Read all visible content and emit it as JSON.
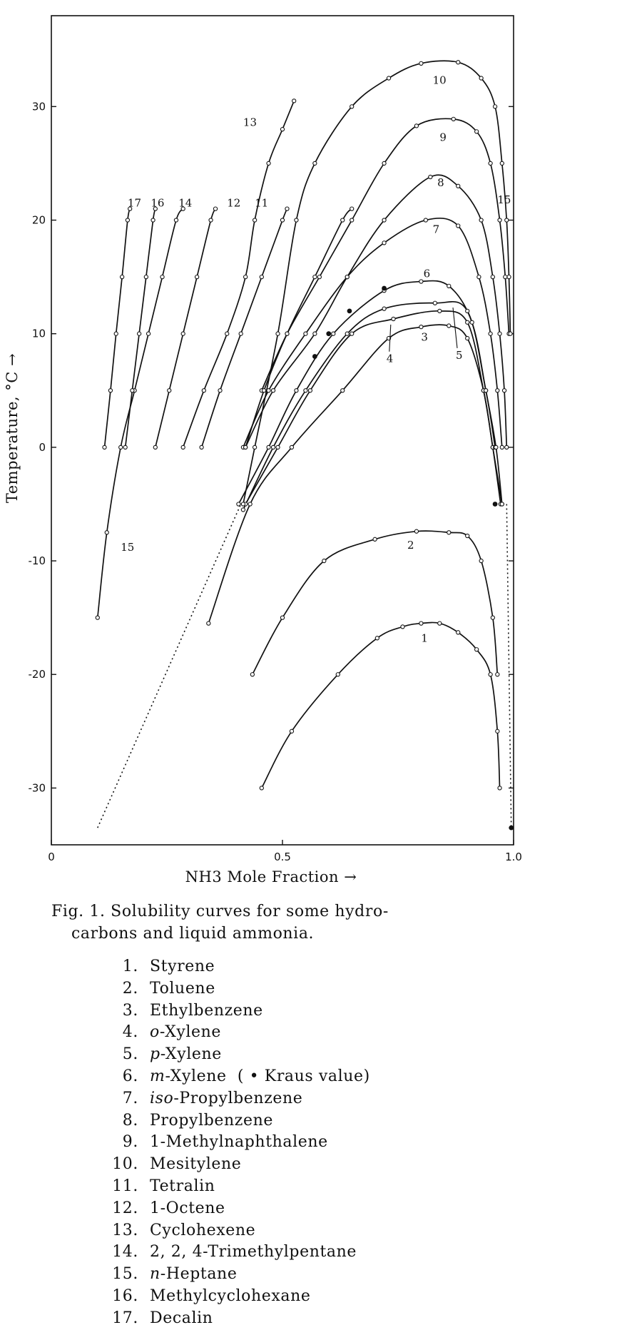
{
  "chart_data": {
    "type": "line",
    "title": "",
    "xlabel": "NH3 Mole Fraction →",
    "ylabel": "Temperature, °C →",
    "xlim": [
      0,
      1.0
    ],
    "ylim": [
      -35,
      38
    ],
    "x_ticks": [
      "0",
      "0.5",
      "1.0"
    ],
    "y_ticks": [
      "30",
      "20",
      "10",
      "0",
      "-10",
      "-20",
      "-30"
    ],
    "grid": false,
    "series": [
      {
        "id": "1",
        "name": "Styrene",
        "points": [
          [
            0.455,
            -30
          ],
          [
            0.52,
            -25
          ],
          [
            0.62,
            -20
          ],
          [
            0.705,
            -16.8
          ],
          [
            0.76,
            -15.8
          ],
          [
            0.8,
            -15.5
          ],
          [
            0.84,
            -15.5
          ],
          [
            0.88,
            -16.3
          ],
          [
            0.92,
            -17.8
          ],
          [
            0.95,
            -20
          ],
          [
            0.965,
            -25
          ],
          [
            0.97,
            -30
          ]
        ]
      },
      {
        "id": "2",
        "name": "Toluene",
        "points": [
          [
            0.435,
            -20
          ],
          [
            0.5,
            -15
          ],
          [
            0.59,
            -10
          ],
          [
            0.7,
            -8.1
          ],
          [
            0.79,
            -7.4
          ],
          [
            0.86,
            -7.5
          ],
          [
            0.9,
            -7.8
          ],
          [
            0.93,
            -10
          ],
          [
            0.955,
            -15
          ],
          [
            0.965,
            -20
          ]
        ]
      },
      {
        "id": "3",
        "name": "Ethylbenzene",
        "points": [
          [
            0.34,
            -15.5
          ],
          [
            0.43,
            -5
          ],
          [
            0.52,
            0
          ],
          [
            0.63,
            5
          ],
          [
            0.73,
            9.6
          ],
          [
            0.8,
            10.6
          ],
          [
            0.86,
            10.7
          ],
          [
            0.9,
            9.6
          ],
          [
            0.935,
            5
          ],
          [
            0.955,
            0
          ],
          [
            0.975,
            -5
          ]
        ]
      },
      {
        "id": "4",
        "name": "o-Xylene",
        "points": [
          [
            0.42,
            -5
          ],
          [
            0.49,
            0
          ],
          [
            0.56,
            5
          ],
          [
            0.65,
            10
          ],
          [
            0.74,
            11.3
          ],
          [
            0.84,
            12
          ],
          [
            0.9,
            11
          ],
          [
            0.935,
            5
          ],
          [
            0.955,
            0
          ],
          [
            0.972,
            -5
          ]
        ]
      },
      {
        "id": "5",
        "name": "p-Xylene",
        "points": [
          [
            0.415,
            -5.5
          ],
          [
            0.48,
            0
          ],
          [
            0.55,
            5
          ],
          [
            0.64,
            10
          ],
          [
            0.72,
            12.2
          ],
          [
            0.83,
            12.7
          ],
          [
            0.9,
            12
          ],
          [
            0.94,
            5
          ],
          [
            0.96,
            0
          ]
        ]
      },
      {
        "id": "6",
        "name": "m-Xylene",
        "points": [
          [
            0.405,
            -5
          ],
          [
            0.47,
            0
          ],
          [
            0.53,
            5
          ],
          [
            0.61,
            10
          ],
          [
            0.72,
            13.8
          ],
          [
            0.8,
            14.6
          ],
          [
            0.86,
            14.2
          ],
          [
            0.91,
            11
          ],
          [
            0.94,
            5
          ],
          [
            0.962,
            0
          ],
          [
            0.975,
            -5
          ]
        ]
      },
      {
        "id": "7",
        "name": "iso-Propylbenzene",
        "points": [
          [
            0.415,
            0
          ],
          [
            0.47,
            5
          ],
          [
            0.55,
            10
          ],
          [
            0.64,
            15
          ],
          [
            0.72,
            18
          ],
          [
            0.81,
            20
          ],
          [
            0.88,
            19.5
          ],
          [
            0.925,
            15
          ],
          [
            0.95,
            10
          ],
          [
            0.965,
            5
          ],
          [
            0.975,
            0
          ]
        ]
      },
      {
        "id": "8",
        "name": "Propylbenzene",
        "points": [
          [
            0.42,
            0
          ],
          [
            0.48,
            5
          ],
          [
            0.57,
            10
          ],
          [
            0.64,
            15
          ],
          [
            0.72,
            20
          ],
          [
            0.82,
            23.8
          ],
          [
            0.88,
            23
          ],
          [
            0.93,
            20
          ],
          [
            0.955,
            15
          ],
          [
            0.97,
            10
          ],
          [
            0.98,
            5
          ],
          [
            0.985,
            0
          ]
        ]
      },
      {
        "id": "9",
        "name": "1-Methylnaphthalene",
        "points": [
          [
            0.455,
            5
          ],
          [
            0.51,
            10
          ],
          [
            0.58,
            15
          ],
          [
            0.65,
            20
          ],
          [
            0.72,
            25
          ],
          [
            0.79,
            28.3
          ],
          [
            0.87,
            28.9
          ],
          [
            0.92,
            27.8
          ],
          [
            0.95,
            25
          ],
          [
            0.97,
            20
          ],
          [
            0.982,
            15
          ],
          [
            0.99,
            10
          ]
        ]
      },
      {
        "id": "10",
        "name": "Mesitylene",
        "points": [
          [
            0.415,
            -5
          ],
          [
            0.44,
            0
          ],
          [
            0.49,
            10
          ],
          [
            0.53,
            20
          ],
          [
            0.57,
            25
          ],
          [
            0.65,
            30
          ],
          [
            0.73,
            32.5
          ],
          [
            0.8,
            33.8
          ],
          [
            0.88,
            33.9
          ],
          [
            0.93,
            32.5
          ],
          [
            0.96,
            30
          ],
          [
            0.975,
            25
          ],
          [
            0.985,
            20
          ],
          [
            0.99,
            15
          ],
          [
            0.993,
            10
          ]
        ]
      },
      {
        "id": "11",
        "name": "Tetralin",
        "points": [
          [
            0.42,
            0
          ],
          [
            0.46,
            5
          ],
          [
            0.51,
            10
          ],
          [
            0.57,
            15
          ],
          [
            0.63,
            20
          ],
          [
            0.65,
            21
          ]
        ]
      },
      {
        "id": "12",
        "name": "1-Octene",
        "points": [
          [
            0.325,
            0
          ],
          [
            0.365,
            5
          ],
          [
            0.41,
            10
          ],
          [
            0.455,
            15
          ],
          [
            0.5,
            20
          ],
          [
            0.51,
            21
          ]
        ]
      },
      {
        "id": "13",
        "name": "Cyclohexene",
        "points": [
          [
            0.285,
            0
          ],
          [
            0.33,
            5
          ],
          [
            0.38,
            10
          ],
          [
            0.42,
            15
          ],
          [
            0.44,
            20
          ],
          [
            0.47,
            25
          ],
          [
            0.5,
            28
          ],
          [
            0.525,
            30.5
          ]
        ]
      },
      {
        "id": "14",
        "name": "2,2,4-Trimethylpentane",
        "points": [
          [
            0.225,
            0
          ],
          [
            0.255,
            5
          ],
          [
            0.285,
            10
          ],
          [
            0.315,
            15
          ],
          [
            0.345,
            20
          ],
          [
            0.355,
            21
          ]
        ]
      },
      {
        "id": "15",
        "name": "n-Heptane",
        "points": [
          [
            0.1,
            -15
          ],
          [
            0.12,
            -7.5
          ],
          [
            0.15,
            0
          ],
          [
            0.18,
            5
          ],
          [
            0.21,
            10
          ],
          [
            0.24,
            15
          ],
          [
            0.27,
            20
          ],
          [
            0.285,
            21
          ]
        ]
      },
      {
        "id": "16",
        "name": "Methylcyclohexane",
        "points": [
          [
            0.16,
            0
          ],
          [
            0.175,
            5
          ],
          [
            0.19,
            10
          ],
          [
            0.205,
            15
          ],
          [
            0.22,
            20
          ],
          [
            0.225,
            21
          ]
        ]
      },
      {
        "id": "17",
        "name": "Decalin",
        "points": [
          [
            0.115,
            0
          ],
          [
            0.128,
            5
          ],
          [
            0.14,
            10
          ],
          [
            0.153,
            15
          ],
          [
            0.165,
            20
          ],
          [
            0.17,
            21
          ]
        ]
      }
    ],
    "dotted_extension": [
      [
        0.1,
        -33.5
      ],
      [
        0.41,
        -5
      ]
    ],
    "kraus_values": [
      [
        0.57,
        8
      ],
      [
        0.6,
        10
      ],
      [
        0.645,
        12
      ],
      [
        0.72,
        14
      ],
      [
        0.96,
        -5
      ],
      [
        0.995,
        -33.5
      ]
    ],
    "annotations": [
      "1",
      "2",
      "3",
      "4",
      "5",
      "6",
      "7",
      "8",
      "9",
      "10",
      "11",
      "12",
      "13",
      "14",
      "15",
      "15",
      "16",
      "17"
    ]
  },
  "caption": {
    "line1": "Fig. 1.  Solubility curves for some hydro-",
    "line2": "carbons and liquid ammonia."
  },
  "legend": [
    {
      "num": "1.",
      "prefix": "",
      "name": "Styrene"
    },
    {
      "num": "2.",
      "prefix": "",
      "name": "Toluene"
    },
    {
      "num": "3.",
      "prefix": "",
      "name": "Ethylbenzene"
    },
    {
      "num": "4.",
      "prefix": "o",
      "name": "-Xylene"
    },
    {
      "num": "5.",
      "prefix": "p",
      "name": "-Xylene"
    },
    {
      "num": "6.",
      "prefix": "m",
      "name": "-Xylene  ( • Kraus value)"
    },
    {
      "num": "7.",
      "prefix": "iso",
      "name": "-Propylbenzene"
    },
    {
      "num": "8.",
      "prefix": "",
      "name": "Propylbenzene"
    },
    {
      "num": "9.",
      "prefix": "",
      "name": "1-Methylnaphthalene"
    },
    {
      "num": "10.",
      "prefix": "",
      "name": "Mesitylene"
    },
    {
      "num": "11.",
      "prefix": "",
      "name": "Tetralin"
    },
    {
      "num": "12.",
      "prefix": "",
      "name": "1-Octene"
    },
    {
      "num": "13.",
      "prefix": "",
      "name": "Cyclohexene"
    },
    {
      "num": "14.",
      "prefix": "",
      "name": "2, 2, 4-Trimethylpentane"
    },
    {
      "num": "15.",
      "prefix": "n",
      "name": "-Heptane"
    },
    {
      "num": "16.",
      "prefix": "",
      "name": "Methylcyclohexane"
    },
    {
      "num": "17.",
      "prefix": "",
      "name": "Decalin"
    }
  ]
}
